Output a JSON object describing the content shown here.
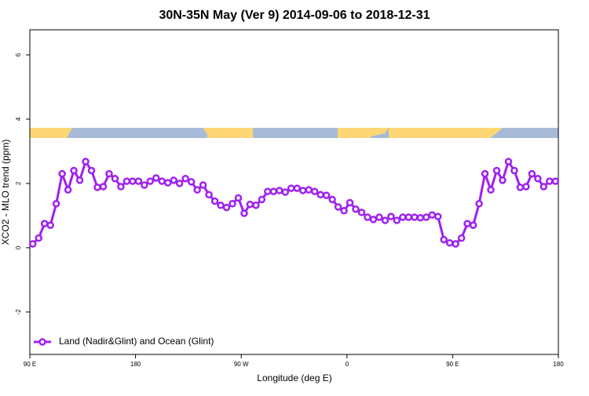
{
  "chart_data": {
    "type": "line",
    "title": "30N-35N May (Ver 9)   2014-09-06 to 2018-12-31",
    "xlabel": "Longitude (deg E)",
    "ylabel": "XCO2 - MLO trend (ppm)",
    "xlim": [
      90,
      540
    ],
    "ylim": [
      -3.32,
      6.78
    ],
    "xticks": [
      {
        "value": 90,
        "label": "90 E"
      },
      180,
      {
        "value": 270,
        "label": "90 W"
      },
      {
        "value": 360,
        "label": "0"
      },
      {
        "value": 450,
        "label": "90 E"
      },
      {
        "value": 540,
        "label": "180"
      }
    ],
    "yticks": [
      -2,
      0,
      2,
      4,
      6
    ],
    "legend": "bottomleft",
    "x": [
      92.5,
      97.5,
      102.5,
      107.5,
      112.5,
      117.5,
      122.5,
      127.5,
      132.5,
      137.5,
      142.5,
      147.5,
      152.5,
      157.5,
      162.5,
      167.5,
      172.5,
      177.5,
      182.5,
      187.5,
      192.5,
      197.5,
      202.5,
      207.5,
      212.5,
      217.5,
      222.5,
      227.5,
      232.5,
      237.5,
      242.5,
      247.5,
      252.5,
      257.5,
      262.5,
      267.5,
      272.5,
      277.5,
      282.5,
      287.5,
      292.5,
      297.5,
      302.5,
      307.5,
      312.5,
      317.5,
      322.5,
      327.5,
      332.5,
      337.5,
      342.5,
      347.5,
      352.5,
      357.5,
      362.5,
      367.5,
      372.5,
      377.5,
      382.5,
      387.5,
      392.5,
      397.5,
      402.5,
      407.5,
      412.5,
      417.5,
      422.5,
      427.5,
      432.5,
      437.5,
      442.5,
      447.5,
      452.5,
      457.5,
      462.5,
      467.5,
      472.5,
      477.5,
      482.5,
      487.5,
      492.5,
      497.5,
      502.5,
      507.5,
      512.5,
      517.5,
      522.5,
      527.5,
      532.5,
      537.5
    ],
    "series": [
      {
        "name": "Land (Nadir&Glint) and Ocean (Glint)",
        "color": "#a020f0",
        "values": [
          0.12,
          0.3,
          0.75,
          0.7,
          1.37,
          2.3,
          1.8,
          2.4,
          2.1,
          2.68,
          2.4,
          1.88,
          1.9,
          2.3,
          2.15,
          1.9,
          2.07,
          2.07,
          2.07,
          1.95,
          2.07,
          2.17,
          2.07,
          2.02,
          2.1,
          2.0,
          2.15,
          2.05,
          1.8,
          1.95,
          1.65,
          1.45,
          1.32,
          1.25,
          1.37,
          1.55,
          1.07,
          1.35,
          1.32,
          1.5,
          1.75,
          1.75,
          1.78,
          1.73,
          1.85,
          1.85,
          1.78,
          1.8,
          1.75,
          1.65,
          1.63,
          1.5,
          1.27,
          1.15,
          1.4,
          1.2,
          1.1,
          0.95,
          0.88,
          0.95,
          0.85,
          0.97,
          0.85,
          0.95,
          0.95,
          0.95,
          0.93,
          0.95,
          1.02,
          0.97,
          0.25,
          0.15,
          0.12,
          0.3,
          0.75,
          0.7,
          1.37,
          2.3,
          1.8,
          2.4,
          2.1,
          2.68,
          2.4,
          1.88,
          1.9,
          2.3,
          2.15,
          1.9,
          2.07,
          2.07
        ]
      }
    ]
  }
}
